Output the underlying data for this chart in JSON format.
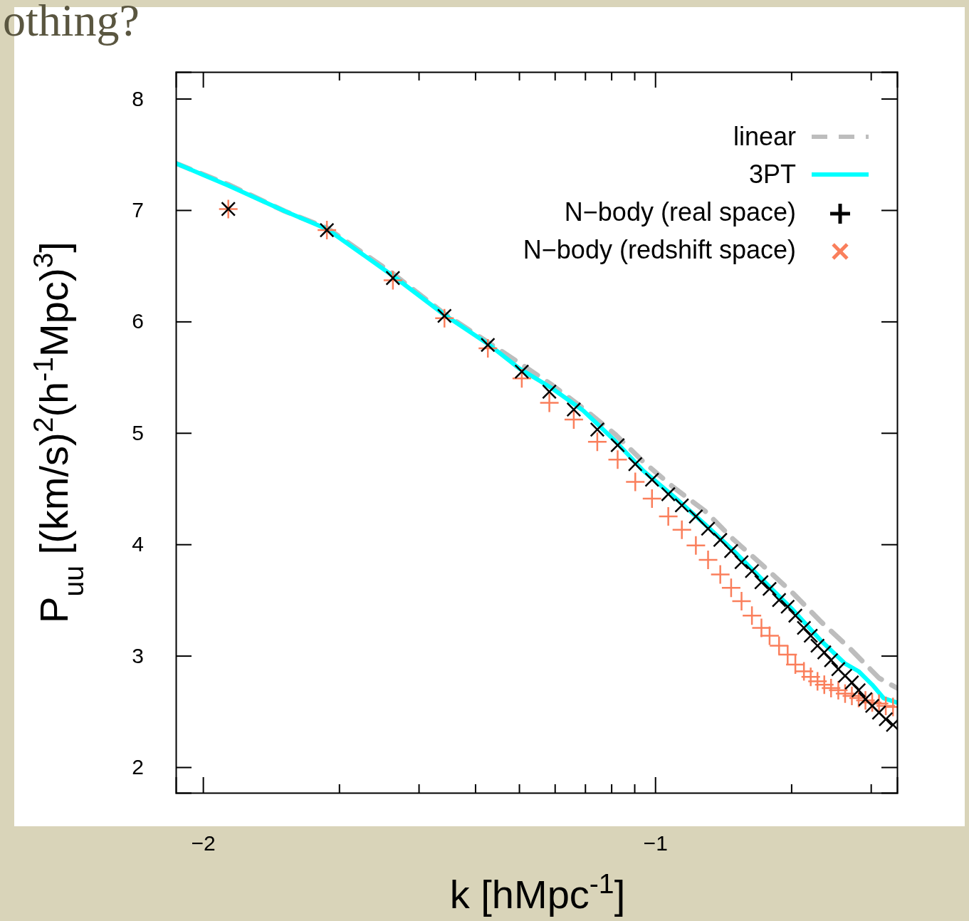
{
  "chart_data": {
    "type": "scatter",
    "title": "othing?",
    "xlabel": "k [hMpc$^{-1}$]",
    "ylabel": "P$_{uu}$ [(km/s)$^{2}$(h$^{-1}$Mpc)$^{3}$]",
    "xlim": [
      -2.06,
      -0.465
    ],
    "ylim": [
      1.77,
      8.24
    ],
    "xticks": [
      {
        "value": -2,
        "label": "−2"
      },
      {
        "value": -1.699,
        "label": null
      },
      {
        "value": -1.523,
        "label": null
      },
      {
        "value": -1.398,
        "label": null
      },
      {
        "value": -1.301,
        "label": null
      },
      {
        "value": -1.222,
        "label": null
      },
      {
        "value": -1.155,
        "label": null
      },
      {
        "value": -1.097,
        "label": null
      },
      {
        "value": -1.046,
        "label": null
      },
      {
        "value": -1,
        "label": "−1"
      },
      {
        "value": -0.699,
        "label": null
      },
      {
        "value": -0.523,
        "label": null
      }
    ],
    "yticks": [
      2,
      3,
      4,
      5,
      6,
      7,
      8
    ],
    "legend": "top right",
    "series": [
      {
        "name": "linear",
        "type": "line",
        "marker": "none",
        "line_style": "dashed",
        "color": "#bdbdbd",
        "x": [
          -2.06,
          -1.944,
          -1.819,
          -1.726,
          -1.58,
          -1.466,
          -1.301,
          -1.228,
          -1.159,
          -1.089,
          -1.026,
          -0.959,
          -0.89,
          -0.826,
          -0.762,
          -0.695,
          -0.632,
          -0.568,
          -0.505,
          -0.465
        ],
        "values": [
          7.42,
          7.23,
          6.99,
          6.84,
          6.43,
          6.07,
          5.63,
          5.43,
          5.22,
          4.99,
          4.74,
          4.51,
          4.3,
          4.04,
          3.81,
          3.56,
          3.3,
          3.06,
          2.8,
          2.71
        ]
      },
      {
        "name": "3PT",
        "type": "line",
        "marker": "none",
        "line_style": "solid",
        "color": "#00ffff",
        "x": [
          -2.06,
          -1.944,
          -1.819,
          -1.726,
          -1.58,
          -1.466,
          -1.37,
          -1.301,
          -1.228,
          -1.159,
          -1.089,
          -1.026,
          -0.959,
          -0.89,
          -0.826,
          -0.762,
          -0.695,
          -0.632,
          -0.58,
          -0.55,
          -0.52,
          -0.495,
          -0.465
        ],
        "values": [
          7.42,
          7.22,
          6.99,
          6.83,
          6.41,
          6.06,
          5.8,
          5.58,
          5.4,
          5.2,
          4.93,
          4.66,
          4.43,
          4.18,
          3.94,
          3.68,
          3.41,
          3.13,
          2.93,
          2.86,
          2.74,
          2.62,
          2.58
        ]
      },
      {
        "name": "N−body (real space)",
        "marker": "cross",
        "color": "#000000",
        "x": [
          -1.944,
          -1.726,
          -1.58,
          -1.466,
          -1.37,
          -1.295,
          -1.234,
          -1.18,
          -1.128,
          -1.083,
          -1.044,
          -1.007,
          -0.971,
          -0.941,
          -0.91,
          -0.883,
          -0.856,
          -0.832,
          -0.809,
          -0.786,
          -0.765,
          -0.747,
          -0.726,
          -0.707,
          -0.69,
          -0.671,
          -0.656,
          -0.641,
          -0.626,
          -0.611,
          -0.595,
          -0.58,
          -0.565,
          -0.55,
          -0.535,
          -0.52,
          -0.505,
          -0.49,
          -0.474
        ],
        "values": [
          7.01,
          6.82,
          6.39,
          6.05,
          5.79,
          5.55,
          5.37,
          5.21,
          5.03,
          4.89,
          4.72,
          4.58,
          4.45,
          4.35,
          4.25,
          4.14,
          4.04,
          3.94,
          3.84,
          3.76,
          3.66,
          3.6,
          3.5,
          3.44,
          3.36,
          3.25,
          3.18,
          3.09,
          3.03,
          2.96,
          2.88,
          2.82,
          2.76,
          2.69,
          2.61,
          2.55,
          2.49,
          2.43,
          2.38
        ]
      },
      {
        "name": "N−body (redshift space)",
        "marker": "cross",
        "color": "#fa7f5c",
        "x": [
          -1.944,
          -1.726,
          -1.58,
          -1.466,
          -1.37,
          -1.295,
          -1.234,
          -1.18,
          -1.128,
          -1.083,
          -1.044,
          -1.007,
          -0.971,
          -0.941,
          -0.91,
          -0.883,
          -0.856,
          -0.832,
          -0.809,
          -0.786,
          -0.765,
          -0.747,
          -0.726,
          -0.707,
          -0.69,
          -0.671,
          -0.656,
          -0.641,
          -0.626,
          -0.611,
          -0.595,
          -0.58,
          -0.565,
          -0.55,
          -0.535,
          -0.52,
          -0.505,
          -0.49,
          -0.474
        ],
        "values": [
          7.01,
          6.82,
          6.37,
          6.03,
          5.76,
          5.49,
          5.27,
          5.12,
          4.92,
          4.76,
          4.56,
          4.41,
          4.25,
          4.13,
          3.99,
          3.86,
          3.73,
          3.61,
          3.49,
          3.36,
          3.25,
          3.18,
          3.09,
          3.01,
          2.92,
          2.86,
          2.81,
          2.77,
          2.74,
          2.71,
          2.69,
          2.66,
          2.64,
          2.62,
          2.6,
          2.58,
          2.57,
          2.55,
          2.54
        ]
      }
    ]
  }
}
